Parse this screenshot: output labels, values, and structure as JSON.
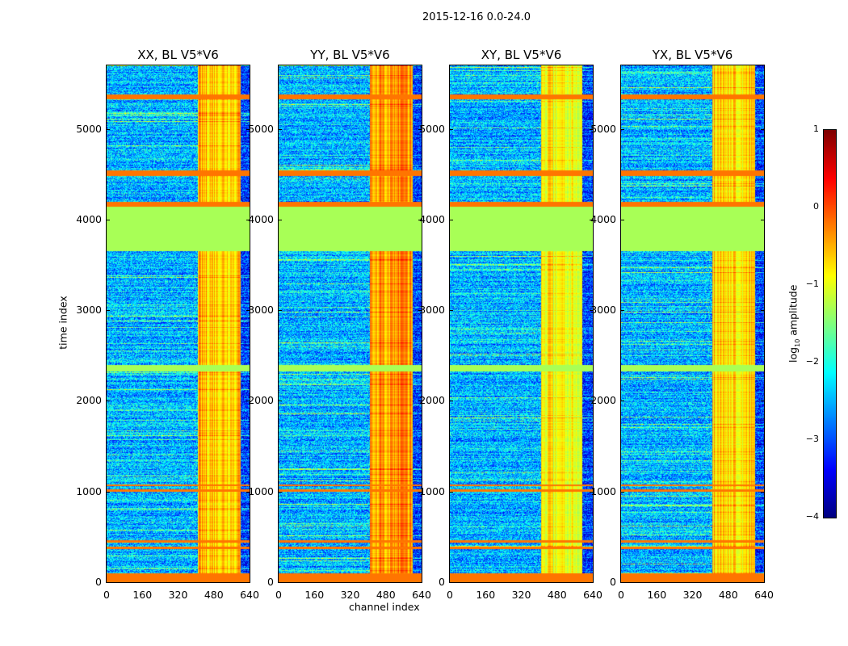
{
  "chart_data": {
    "type": "heatmap",
    "title": "2015-12-16 0.0-24.0",
    "xlabel": "channel index",
    "ylabel": "time index",
    "xlim": [
      0,
      640
    ],
    "ylim": [
      0,
      5700
    ],
    "xticks": [
      "0",
      "160",
      "320",
      "480",
      "640"
    ],
    "yticks": [
      "0",
      "1000",
      "2000",
      "3000",
      "4000",
      "5000"
    ],
    "panels": [
      {
        "title": "XX, BL V5*V6",
        "bright_channels": [
          405,
          600
        ],
        "bright_level": -0.6
      },
      {
        "title": "YY, BL V5*V6",
        "bright_channels": [
          405,
          600
        ],
        "bright_level": -0.4
      },
      {
        "title": "XY, BL V5*V6",
        "bright_channels": [
          405,
          590
        ],
        "bright_level": -0.9
      },
      {
        "title": "YX, BL V5*V6",
        "bright_channels": [
          405,
          600
        ],
        "bright_level": -0.7
      }
    ],
    "flagged_rows": [
      [
        0,
        100
      ],
      [
        370,
        400
      ],
      [
        440,
        470
      ],
      [
        1000,
        1030
      ],
      [
        1060,
        1080
      ],
      [
        4150,
        4200
      ],
      [
        4480,
        4550
      ],
      [
        5330,
        5380
      ]
    ],
    "flat_rows": [
      [
        2330,
        2400
      ],
      [
        3660,
        4150
      ]
    ],
    "flagged_level": -0.2,
    "flat_level": -1.3,
    "background_level": -2.5,
    "colorbar": {
      "label": "log10 amplitude",
      "label_main": "log",
      "label_sub": "10",
      "label_rest": " amplitude",
      "range": [
        -4,
        1
      ],
      "ticks": [
        "1",
        "0",
        "−1",
        "−2",
        "−3",
        "−4"
      ],
      "tick_values": [
        1,
        0,
        -1,
        -2,
        -3,
        -4
      ],
      "colormap": "jet"
    }
  }
}
